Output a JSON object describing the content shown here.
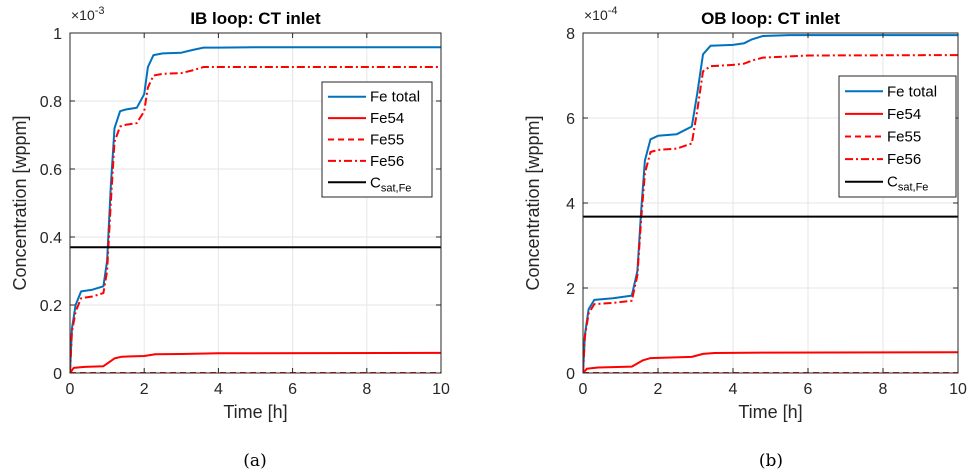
{
  "chart_data": [
    {
      "type": "line",
      "title": "IB loop: CT inlet",
      "xlabel": "Time [h]",
      "ylabel": "Concentration [wppm]",
      "caption": "(a)",
      "xlim": [
        0,
        10
      ],
      "ylim": [
        0,
        1
      ],
      "y_multiplier": "10",
      "y_exponent": "-3",
      "xticks": [
        "0",
        "2",
        "4",
        "6",
        "8",
        "10"
      ],
      "yticks": [
        "0",
        "0.2",
        "0.4",
        "0.6",
        "0.8",
        "1"
      ],
      "grid": true,
      "legend_position": "right",
      "series": [
        {
          "name": "Fe total",
          "color": "#0072BD",
          "style": "solid",
          "x": [
            0,
            0.05,
            0.15,
            0.3,
            0.6,
            0.9,
            1.0,
            1.1,
            1.2,
            1.35,
            1.5,
            1.8,
            2.0,
            2.1,
            2.25,
            2.5,
            3.0,
            3.3,
            3.6,
            4.0,
            5.0,
            10.0
          ],
          "y": [
            0,
            0.13,
            0.2,
            0.24,
            0.245,
            0.255,
            0.33,
            0.55,
            0.72,
            0.77,
            0.775,
            0.78,
            0.82,
            0.9,
            0.935,
            0.94,
            0.942,
            0.95,
            0.957,
            0.957,
            0.958,
            0.958
          ]
        },
        {
          "name": "Fe54",
          "color": "#FF0000",
          "style": "solid",
          "x": [
            0,
            0.1,
            0.4,
            0.9,
            1.2,
            1.4,
            2.0,
            2.3,
            3.0,
            4.0,
            10.0
          ],
          "y": [
            0,
            0.015,
            0.018,
            0.02,
            0.043,
            0.048,
            0.05,
            0.055,
            0.056,
            0.058,
            0.059
          ]
        },
        {
          "name": "Fe55",
          "color": "#FF0000",
          "style": "dashed",
          "x": [
            0,
            10
          ],
          "y": [
            0,
            0
          ]
        },
        {
          "name": "Fe56",
          "color": "#FF0000",
          "style": "dashdot",
          "x": [
            0,
            0.05,
            0.15,
            0.3,
            0.6,
            0.9,
            1.0,
            1.1,
            1.2,
            1.35,
            1.5,
            1.8,
            2.0,
            2.1,
            2.25,
            2.5,
            3.0,
            3.3,
            3.6,
            4.0,
            5.0,
            10.0
          ],
          "y": [
            0,
            0.12,
            0.18,
            0.22,
            0.225,
            0.235,
            0.3,
            0.5,
            0.68,
            0.725,
            0.73,
            0.735,
            0.77,
            0.84,
            0.875,
            0.88,
            0.882,
            0.89,
            0.9,
            0.9,
            0.9,
            0.9
          ]
        },
        {
          "name": "C_sat,Fe",
          "color": "#000000",
          "style": "solid",
          "x": [
            0,
            10
          ],
          "y": [
            0.37,
            0.37
          ]
        }
      ]
    },
    {
      "type": "line",
      "title": "OB loop: CT inlet",
      "xlabel": "Time [h]",
      "ylabel": "Concentration [wppm]",
      "caption": "(b)",
      "xlim": [
        0,
        10
      ],
      "ylim": [
        0,
        8
      ],
      "y_multiplier": "10",
      "y_exponent": "-4",
      "xticks": [
        "0",
        "2",
        "4",
        "6",
        "8",
        "10"
      ],
      "yticks": [
        "0",
        "2",
        "4",
        "6",
        "8"
      ],
      "grid": true,
      "legend_position": "right",
      "series": [
        {
          "name": "Fe total",
          "color": "#0072BD",
          "style": "solid",
          "x": [
            0,
            0.05,
            0.15,
            0.3,
            0.8,
            1.3,
            1.45,
            1.55,
            1.65,
            1.8,
            2.0,
            2.5,
            2.9,
            3.05,
            3.2,
            3.4,
            4.0,
            4.3,
            4.5,
            4.8,
            5.5,
            10.0
          ],
          "y": [
            0,
            0.9,
            1.5,
            1.72,
            1.76,
            1.82,
            2.4,
            3.8,
            5.0,
            5.5,
            5.58,
            5.62,
            5.8,
            6.6,
            7.5,
            7.7,
            7.72,
            7.76,
            7.85,
            7.93,
            7.95,
            7.95
          ]
        },
        {
          "name": "Fe54",
          "color": "#FF0000",
          "style": "solid",
          "x": [
            0,
            0.1,
            0.4,
            1.3,
            1.6,
            1.8,
            2.9,
            3.2,
            3.5,
            5.0,
            10.0
          ],
          "y": [
            0,
            0.1,
            0.13,
            0.15,
            0.3,
            0.35,
            0.38,
            0.45,
            0.47,
            0.48,
            0.49
          ]
        },
        {
          "name": "Fe55",
          "color": "#FF0000",
          "style": "dashed",
          "x": [
            0,
            10
          ],
          "y": [
            0,
            0
          ]
        },
        {
          "name": "Fe56",
          "color": "#FF0000",
          "style": "dashdot",
          "x": [
            0,
            0.05,
            0.15,
            0.3,
            0.8,
            1.3,
            1.45,
            1.55,
            1.65,
            1.8,
            2.0,
            2.5,
            2.9,
            3.05,
            3.2,
            3.4,
            4.0,
            4.3,
            4.5,
            4.8,
            5.5,
            6.0,
            10.0
          ],
          "y": [
            0,
            0.85,
            1.4,
            1.62,
            1.65,
            1.7,
            2.3,
            3.6,
            4.7,
            5.2,
            5.25,
            5.28,
            5.4,
            6.2,
            7.1,
            7.22,
            7.25,
            7.28,
            7.35,
            7.42,
            7.45,
            7.47,
            7.48
          ]
        },
        {
          "name": "C_sat,Fe",
          "color": "#000000",
          "style": "solid",
          "x": [
            0,
            10
          ],
          "y": [
            3.68,
            3.68
          ]
        }
      ]
    }
  ]
}
